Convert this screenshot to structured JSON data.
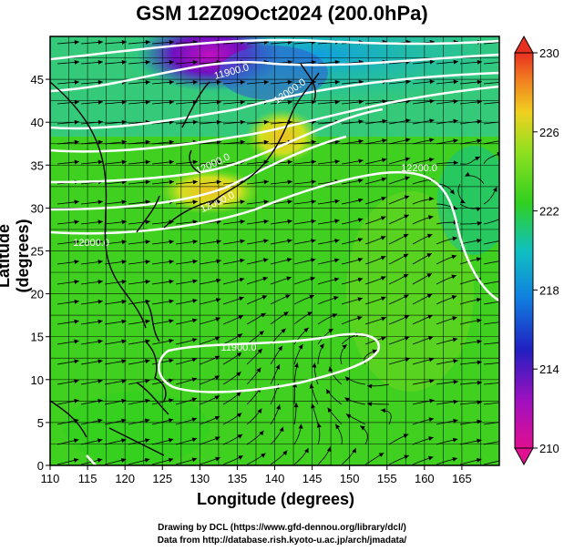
{
  "title": "GSM 12Z09Oct2024 (200.0hPa)",
  "xlabel": "Longitude (degrees)",
  "ylabel": "Latitude  (degrees)",
  "x_ticks": [
    "110",
    "115",
    "120",
    "125",
    "130",
    "135",
    "140",
    "145",
    "150",
    "155",
    "160",
    "165"
  ],
  "y_ticks": [
    "0",
    "5",
    "10",
    "15",
    "20",
    "25",
    "30",
    "35",
    "40",
    "45"
  ],
  "colorbar": {
    "ticks": [
      "230",
      "226",
      "222",
      "218",
      "214",
      "210"
    ],
    "colors": [
      "#e01090",
      "#3020c0",
      "#10a0e0",
      "#20c0a0",
      "#30d020",
      "#90e020",
      "#f0d020",
      "#f08020",
      "#e83020"
    ]
  },
  "contour_labels": [
    "11900.0",
    "11900.0",
    "12000.0",
    "12000.0",
    "12000.0",
    "12000.0",
    "12200.0"
  ],
  "credit_line1": "Drawing by DCL (https://www.gfd-dennou.org/library/dcl/)",
  "credit_line2": "Data from http://database.rish.kyoto-u.ac.jp/arch/jmadata/"
}
